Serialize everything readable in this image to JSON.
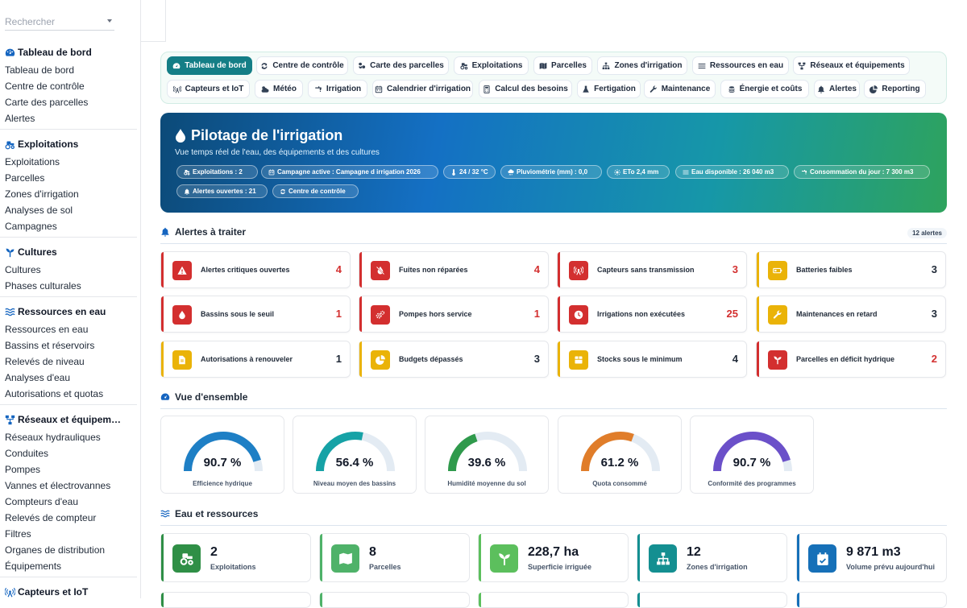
{
  "sidebar": {
    "search_placeholder": "Rechercher",
    "sections": [
      {
        "title": "Tableau de bord",
        "icon": "dashboard-gauge-icon",
        "items": [
          "Tableau de bord",
          "Centre de contrôle",
          "Carte des parcelles",
          "Alertes"
        ]
      },
      {
        "title": "Exploitations",
        "icon": "tractor-icon",
        "items": [
          "Exploitations",
          "Parcelles",
          "Zones d'irrigation",
          "Analyses de sol",
          "Campagnes"
        ]
      },
      {
        "title": "Cultures",
        "icon": "seedling-icon",
        "items": [
          "Cultures",
          "Phases culturales"
        ]
      },
      {
        "title": "Ressources en eau",
        "icon": "water-waves-icon",
        "items": [
          "Ressources en eau",
          "Bassins et réservoirs",
          "Relevés de niveau",
          "Analyses d'eau",
          "Autorisations et quotas"
        ]
      },
      {
        "title": "Réseaux et équipem…",
        "icon": "network-icon",
        "items": [
          "Réseaux hydrauliques",
          "Conduites",
          "Pompes",
          "Vannes et électrovannes",
          "Compteurs d'eau",
          "Relevés de compteur",
          "Filtres",
          "Organes de distribution",
          "Équipements"
        ]
      },
      {
        "title": "Capteurs et IoT",
        "icon": "antenna-icon",
        "items": []
      }
    ]
  },
  "tabs": [
    {
      "label": "Tableau de bord",
      "icon": "gauge-icon",
      "active": true
    },
    {
      "label": "Centre de contrôle",
      "icon": "sync-icon"
    },
    {
      "label": "Carte des parcelles",
      "icon": "cubes-icon"
    },
    {
      "label": "Exploitations",
      "icon": "tractor-icon"
    },
    {
      "label": "Parcelles",
      "icon": "map-icon"
    },
    {
      "label": "Zones d'irrigation",
      "icon": "sitemap-icon"
    },
    {
      "label": "Ressources en eau",
      "icon": "water-icon"
    },
    {
      "label": "Réseaux et équipements",
      "icon": "network-icon"
    },
    {
      "label": "Capteurs et IoT",
      "icon": "antenna-icon"
    },
    {
      "label": "Météo",
      "icon": "cloud-sun-icon"
    },
    {
      "label": "Irrigation",
      "icon": "faucet-icon"
    },
    {
      "label": "Calendrier d'irrigation",
      "icon": "calendar-icon"
    },
    {
      "label": "Calcul des besoins",
      "icon": "calculator-icon"
    },
    {
      "label": "Fertigation",
      "icon": "flask-icon"
    },
    {
      "label": "Maintenance",
      "icon": "wrench-icon"
    },
    {
      "label": "Énergie et coûts",
      "icon": "coins-icon"
    },
    {
      "label": "Alertes",
      "icon": "bell-icon"
    },
    {
      "label": "Reporting",
      "icon": "pie-chart-icon"
    }
  ],
  "hero": {
    "title": "Pilotage de l'irrigation",
    "subtitle": "Vue temps réel de l'eau, des équipements et des cultures",
    "pills": [
      {
        "label": "Exploitations : 2",
        "icon": "tractor-icon"
      },
      {
        "label": "Campagne active : Campagne d irrigation 2026",
        "icon": "calendar-icon"
      },
      {
        "label": "24 / 32 °C",
        "icon": "thermometer-icon"
      },
      {
        "label": "Pluviométrie (mm) : 0,0",
        "icon": "cloud-rain-icon"
      },
      {
        "label": "ETo 2,4 mm",
        "icon": "sun-icon"
      },
      {
        "label": "Eau disponible : 26 040 m3",
        "icon": "water-icon"
      },
      {
        "label": "Consommation du jour : 7 300 m3",
        "icon": "faucet-icon"
      },
      {
        "label": "Alertes ouvertes : 21",
        "icon": "bell-icon"
      },
      {
        "label": "Centre de contrôle",
        "icon": "sync-icon"
      }
    ]
  },
  "alerts_section": {
    "title": "Alertes à traiter",
    "count_label": "12 alertes",
    "cards": [
      {
        "label": "Alertes critiques ouvertes",
        "value": "4",
        "severity": "critical",
        "icon": "warning-triangle-icon"
      },
      {
        "label": "Fuites non réparées",
        "value": "4",
        "severity": "critical",
        "icon": "leak-drop-slash-icon"
      },
      {
        "label": "Capteurs sans transmission",
        "value": "3",
        "severity": "critical",
        "icon": "antenna-icon"
      },
      {
        "label": "Batteries faibles",
        "value": "3",
        "severity": "warning",
        "icon": "battery-icon"
      },
      {
        "label": "Bassins sous le seuil",
        "value": "1",
        "severity": "critical",
        "icon": "water-drop-icon"
      },
      {
        "label": "Pompes hors service",
        "value": "1",
        "severity": "critical",
        "icon": "gears-icon"
      },
      {
        "label": "Irrigations non exécutées",
        "value": "25",
        "severity": "critical",
        "icon": "clock-icon"
      },
      {
        "label": "Maintenances en retard",
        "value": "3",
        "severity": "warning",
        "icon": "wrench-icon"
      },
      {
        "label": "Autorisations à renouveler",
        "value": "1",
        "severity": "warning",
        "icon": "document-icon"
      },
      {
        "label": "Budgets dépassés",
        "value": "3",
        "severity": "warning",
        "icon": "pie-chart-icon"
      },
      {
        "label": "Stocks sous le minimum",
        "value": "4",
        "severity": "warning",
        "icon": "box-icon"
      },
      {
        "label": "Parcelles en déficit hydrique",
        "value": "2",
        "severity": "critical",
        "icon": "seedling-icon"
      }
    ]
  },
  "overview_section": {
    "title": "Vue d'ensemble",
    "gauges": [
      {
        "value": 90.7,
        "display": "90.7 %",
        "label": "Efficience hydrique",
        "color": "#1e7fc5"
      },
      {
        "value": 56.4,
        "display": "56.4 %",
        "label": "Niveau moyen des bassins",
        "color": "#16a2a6"
      },
      {
        "value": 39.6,
        "display": "39.6 %",
        "label": "Humidité moyenne du sol",
        "color": "#2f9a4c"
      },
      {
        "value": 61.2,
        "display": "61.2 %",
        "label": "Quota consommé",
        "color": "#e07d2a"
      },
      {
        "value": 90.7,
        "display": "90.7 %",
        "label": "Conformité des programmes",
        "color": "#6b50c9"
      }
    ]
  },
  "water_section": {
    "title": "Eau et ressources",
    "kpis": [
      {
        "value": "2",
        "label": "Exploitations",
        "icon": "tractor-icon",
        "color": "#2f8f46"
      },
      {
        "value": "8",
        "label": "Parcelles",
        "icon": "map-icon",
        "color": "#4fb269"
      },
      {
        "value": "228,7 ha",
        "label": "Superficie irriguée",
        "icon": "seedling-icon",
        "color": "#5cbf5d"
      },
      {
        "value": "12",
        "label": "Zones d'irrigation",
        "icon": "sitemap-icon",
        "color": "#148f91"
      },
      {
        "value": "9 871 m3",
        "label": "Volume prévu aujourd'hui",
        "icon": "calendar-check-icon",
        "color": "#1670b8"
      }
    ]
  },
  "colors": {
    "critical": "#d32f2f",
    "warning": "#eab308",
    "accent": "#147e86"
  }
}
